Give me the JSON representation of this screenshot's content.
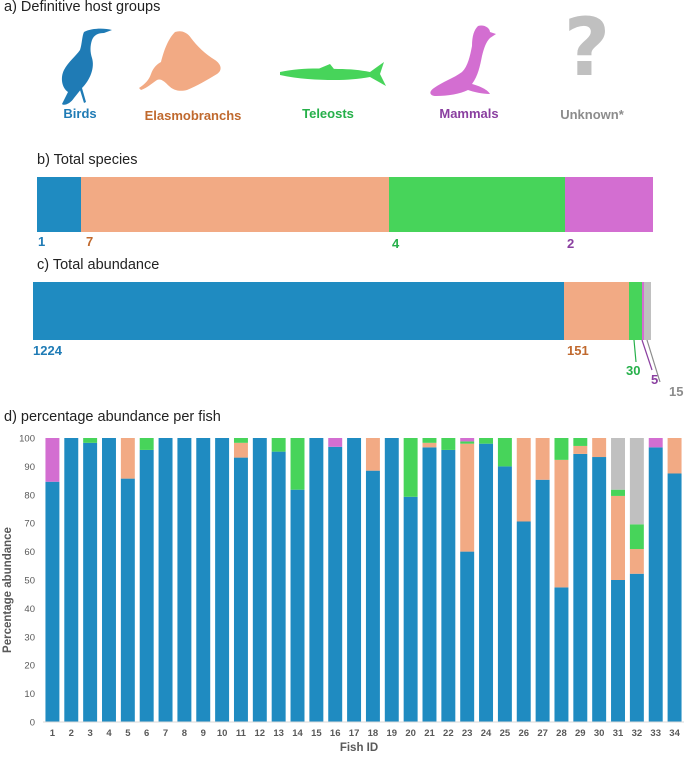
{
  "colors": {
    "birds": "#1f8bc1",
    "elasmobranchs": "#f2aa84",
    "teleosts": "#47d45a",
    "mammals": "#d36ed1",
    "unknown": "#c0c0c0",
    "birds_text": "#1f7bb5",
    "elasmobranchs_text": "#c0692e",
    "teleosts_text": "#26b04a",
    "mammals_text": "#8a3fa0",
    "unknown_text": "#8c8c8c"
  },
  "panel_a": {
    "title": "a) Definitive host groups",
    "hosts": [
      {
        "key": "birds",
        "label": "Birds",
        "icon": "bird-icon"
      },
      {
        "key": "elasmobranchs",
        "label": "Elasmobranchs",
        "icon": "stingray-icon"
      },
      {
        "key": "teleosts",
        "label": "Teleosts",
        "icon": "fish-icon"
      },
      {
        "key": "mammals",
        "label": "Mammals",
        "icon": "sea-lion-icon"
      },
      {
        "key": "unknown",
        "label": "Unknown*",
        "icon": "question-icon"
      }
    ]
  },
  "panel_b": {
    "title": "b) Total species",
    "labels": {
      "birds": "1",
      "elasmobranchs": "7",
      "teleosts": "4",
      "mammals": "2"
    }
  },
  "panel_c": {
    "title": "c) Total abundance",
    "labels": {
      "birds": "1224",
      "elasmobranchs": "151",
      "teleosts": "30",
      "mammals": "5",
      "unknown": "15"
    }
  },
  "chart_data": [
    {
      "type": "bar",
      "orientation": "horizontal-stacked",
      "title": "b) Total species",
      "categories": [
        "Birds",
        "Elasmobranchs",
        "Teleosts",
        "Mammals"
      ],
      "values": [
        1,
        7,
        4,
        2
      ]
    },
    {
      "type": "bar",
      "orientation": "horizontal-stacked",
      "title": "c) Total abundance",
      "categories": [
        "Birds",
        "Elasmobranchs",
        "Teleosts",
        "Mammals",
        "Unknown"
      ],
      "values": [
        1224,
        151,
        30,
        5,
        15
      ]
    },
    {
      "type": "bar",
      "stacked": true,
      "title": "d) percentage abundance per fish",
      "xlabel": "Fish ID",
      "ylabel": "Percentage abundance",
      "ylim": [
        0,
        100
      ],
      "yticks": [
        0,
        10,
        20,
        30,
        40,
        50,
        60,
        70,
        80,
        90,
        100
      ],
      "grid": false,
      "categories": [
        "1",
        "2",
        "3",
        "4",
        "5",
        "6",
        "7",
        "8",
        "9",
        "10",
        "11",
        "12",
        "13",
        "14",
        "15",
        "16",
        "17",
        "18",
        "19",
        "20",
        "21",
        "22",
        "23",
        "24",
        "25",
        "26",
        "27",
        "28",
        "29",
        "30",
        "31",
        "32",
        "33",
        "34"
      ],
      "series": [
        {
          "name": "Birds",
          "color_key": "birds",
          "values": [
            84.6,
            100,
            98.3,
            100,
            85.7,
            95.8,
            100,
            100,
            100,
            100,
            93.1,
            100,
            95.2,
            81.8,
            100,
            96.9,
            100,
            88.5,
            100,
            79.3,
            96.7,
            95.8,
            60,
            98,
            90,
            70.6,
            85.3,
            47.4,
            94.4,
            93.3,
            50,
            52.2,
            96.7,
            87.5
          ]
        },
        {
          "name": "Elasmobranchs",
          "color_key": "elasmobranchs",
          "values": [
            0,
            0,
            0,
            0,
            14.3,
            0,
            0,
            0,
            0,
            0,
            5.2,
            0,
            0,
            0,
            0,
            0,
            0,
            11.5,
            0,
            0,
            1.6,
            0,
            38,
            0,
            0,
            29.4,
            14.7,
            44.9,
            2.8,
            6.7,
            29.6,
            8.7,
            0,
            12.5
          ]
        },
        {
          "name": "Teleosts",
          "color_key": "teleosts",
          "values": [
            0,
            0,
            1.7,
            0,
            0,
            4.2,
            0,
            0,
            0,
            0,
            1.7,
            0,
            4.8,
            18.2,
            0,
            0,
            0,
            0,
            0,
            20.7,
            1.7,
            4.2,
            0.8,
            2,
            10,
            0,
            0,
            7.7,
            2.8,
            0,
            2.2,
            8.7,
            0,
            0
          ]
        },
        {
          "name": "Mammals",
          "color_key": "mammals",
          "values": [
            15.4,
            0,
            0,
            0,
            0,
            0,
            0,
            0,
            0,
            0,
            0,
            0,
            0,
            0,
            0,
            3.1,
            0,
            0,
            0,
            0,
            0,
            0,
            1.2,
            0,
            0,
            0,
            0,
            0,
            0,
            0,
            0,
            0,
            3.3,
            0
          ]
        },
        {
          "name": "Unknown",
          "color_key": "unknown",
          "values": [
            0,
            0,
            0,
            0,
            0,
            0,
            0,
            0,
            0,
            0,
            0,
            0,
            0,
            0,
            0,
            0,
            0,
            0,
            0,
            0,
            0,
            0,
            0,
            0,
            0,
            0,
            0,
            0,
            0,
            0,
            18.2,
            30.4,
            0,
            0
          ]
        }
      ]
    }
  ]
}
